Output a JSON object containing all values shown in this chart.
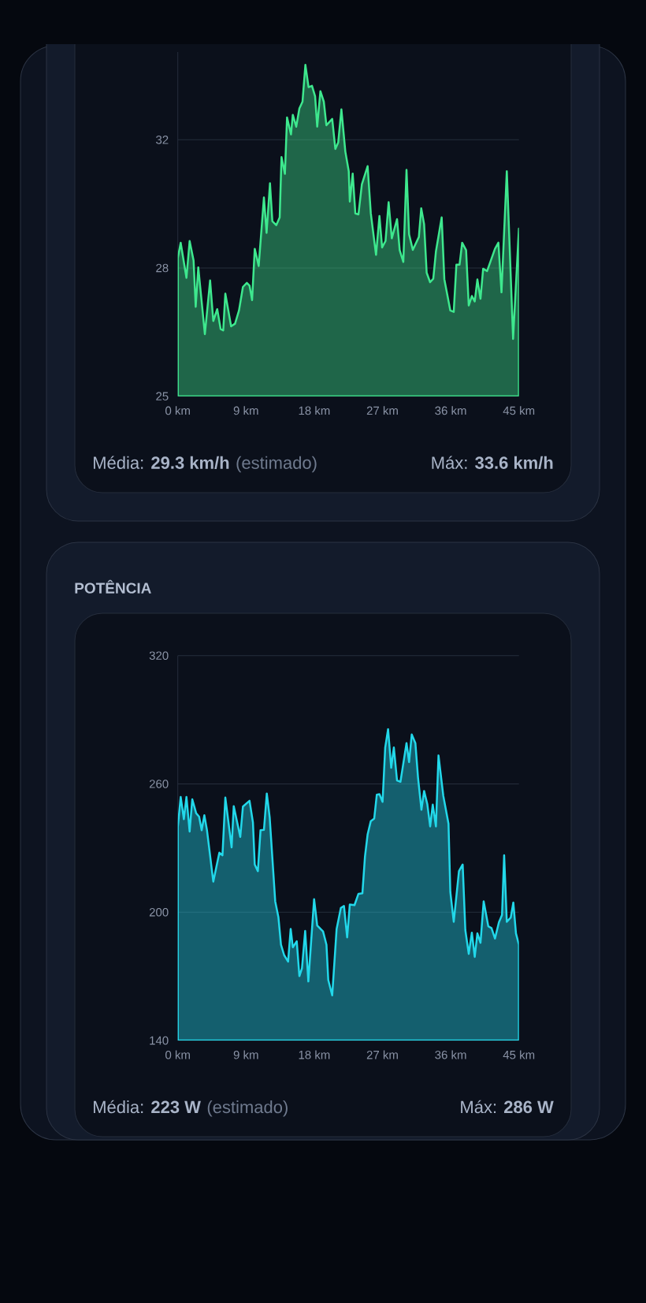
{
  "chart_data": [
    {
      "type": "area",
      "xlim": [
        0,
        45
      ],
      "xticks": [
        {
          "value": 0,
          "label": "0 km"
        },
        {
          "value": 9,
          "label": "9 km"
        },
        {
          "value": 18,
          "label": "18 km"
        },
        {
          "value": 27,
          "label": "27 km"
        },
        {
          "value": 36,
          "label": "36 km"
        },
        {
          "value": 45,
          "label": "45 km"
        }
      ],
      "ylim": [
        24.6,
        34.8
      ],
      "yticks": [
        {
          "value": 24.6,
          "label": "25"
        },
        {
          "value": 28.4,
          "label": "28"
        },
        {
          "value": 32.2,
          "label": "32"
        }
      ],
      "grid": "y",
      "series": [
        {
          "color": "#3ee88e",
          "x": [
            0,
            0.38,
            1.14,
            1.56,
            2.08,
            2.36,
            2.7,
            3.57,
            4.26,
            4.68,
            5.2,
            5.65,
            5.99,
            6.27,
            7.03,
            7.55,
            8.07,
            8.59,
            9.11,
            9.46,
            9.8,
            10.15,
            10.67,
            11.36,
            11.71,
            12.16,
            12.47,
            12.99,
            13.44,
            13.68,
            14.13,
            14.41,
            14.93,
            15.17,
            15.62,
            16.04,
            16.45,
            16.83,
            17.25,
            17.7,
            18.11,
            18.39,
            18.81,
            19.26,
            19.6,
            20.37,
            20.78,
            21.16,
            21.58,
            22.1,
            22.55,
            22.69,
            23.07,
            23.42,
            23.83,
            24.28,
            25.04,
            25.46,
            26.15,
            26.6,
            26.95,
            27.4,
            27.81,
            28.23,
            28.92,
            29.27,
            29.75,
            30.17,
            30.51,
            31.0,
            31.8,
            32.11,
            32.49,
            32.83,
            33.28,
            33.7,
            34.05,
            34.81,
            35.16,
            35.95,
            36.4,
            36.75,
            37.17,
            37.51,
            38.03,
            38.38,
            38.79,
            39.17,
            39.52,
            39.93,
            40.28,
            40.8,
            41.84,
            42.29,
            42.7,
            43.4,
            44.23,
            45
          ],
          "values": [
            28.7,
            29.15,
            28.11,
            29.2,
            28.62,
            27.25,
            28.42,
            26.44,
            28.03,
            26.83,
            27.18,
            26.59,
            26.55,
            27.64,
            26.67,
            26.75,
            27.14,
            27.84,
            27.96,
            27.88,
            27.45,
            28.97,
            28.46,
            30.49,
            29.44,
            30.91,
            29.79,
            29.67,
            29.9,
            31.69,
            31.19,
            32.86,
            32.36,
            32.94,
            32.59,
            33.13,
            33.33,
            34.42,
            33.76,
            33.8,
            33.49,
            32.59,
            33.64,
            33.33,
            32.63,
            32.82,
            31.93,
            32.12,
            33.1,
            31.85,
            31.27,
            30.37,
            31.2,
            30.02,
            29.99,
            30.88,
            31.42,
            30.02,
            28.79,
            29.94,
            29.01,
            29.2,
            30.35,
            29.28,
            29.85,
            28.93,
            28.58,
            31.31,
            29.4,
            28.94,
            29.32,
            30.17,
            29.7,
            28.26,
            27.98,
            28.08,
            28.89,
            29.9,
            28.07,
            27.14,
            27.1,
            28.5,
            28.5,
            29.15,
            28.93,
            27.29,
            27.57,
            27.41,
            28.06,
            27.49,
            28.38,
            28.31,
            28.97,
            29.15,
            27.68,
            31.27,
            26.3,
            29.57
          ]
        }
      ],
      "annotations": [
        "Média: **29.3 km/h**",
        "(estimado)",
        "Máx: **33.6 km/h**"
      ]
    },
    {
      "type": "area",
      "title": "POTÊNCIA",
      "xlim": [
        0,
        45
      ],
      "xticks": [
        {
          "value": 0,
          "label": "0 km"
        },
        {
          "value": 9,
          "label": "9 km"
        },
        {
          "value": 18,
          "label": "18 km"
        },
        {
          "value": 27,
          "label": "27 km"
        },
        {
          "value": 36,
          "label": "36 km"
        },
        {
          "value": 45,
          "label": "45 km"
        }
      ],
      "ylim": [
        140,
        320
      ],
      "yticks": [
        140,
        200,
        260,
        320
      ],
      "grid": "y",
      "series": [
        {
          "color": "#22d8ea",
          "x": [
            0,
            0.38,
            0.8,
            1.14,
            1.56,
            1.91,
            2.42,
            2.81,
            3.15,
            3.5,
            3.85,
            4.68,
            5.48,
            5.89,
            6.27,
            7.1,
            7.38,
            8.24,
            8.59,
            9.46,
            9.91,
            10.15,
            10.56,
            10.91,
            11.36,
            11.74,
            12.12,
            12.85,
            13.27,
            13.61,
            14.03,
            14.55,
            14.89,
            15.17,
            15.69,
            16.04,
            16.38,
            16.8,
            17.22,
            17.98,
            18.39,
            19.16,
            19.61,
            19.85,
            20.37,
            20.95,
            21.51,
            21.92,
            22.34,
            22.69,
            23.31,
            23.83,
            24.35,
            24.69,
            25.04,
            25.46,
            25.91,
            26.25,
            26.6,
            27.01,
            27.36,
            27.74,
            28.15,
            28.5,
            28.92,
            29.37,
            30.17,
            30.51,
            30.86,
            31.34,
            31.69,
            32.14,
            32.49,
            32.91,
            33.29,
            33.63,
            34.05,
            34.39,
            35.02,
            35.71,
            35.95,
            36.4,
            37.09,
            37.58,
            37.93,
            38.38,
            38.79,
            39.17,
            39.52,
            39.93,
            40.35,
            40.96,
            41.38,
            41.84,
            42.36,
            42.77,
            43.05,
            43.4,
            43.92,
            44.26,
            44.61,
            45
          ],
          "values": [
            239.8,
            253.9,
            243.5,
            253.9,
            237.7,
            252.8,
            246.3,
            244.7,
            238.3,
            245.3,
            238.3,
            214.3,
            227.8,
            226.6,
            253.6,
            230.3,
            249.6,
            235.2,
            249.4,
            252.1,
            242.0,
            222.3,
            219.2,
            238.3,
            238.5,
            255.5,
            244.4,
            205.1,
            197.7,
            184.8,
            179.9,
            176.9,
            192.2,
            183.6,
            186.4,
            170.1,
            173.8,
            191.2,
            167.6,
            206.1,
            193.8,
            191.0,
            184.8,
            168.3,
            161.1,
            192.2,
            202.0,
            202.9,
            188.2,
            203.6,
            203.3,
            208.6,
            208.8,
            226.0,
            236.4,
            242.6,
            243.8,
            254.9,
            255.2,
            251.6,
            277.0,
            285.6,
            267.5,
            277.0,
            261.6,
            261.0,
            279.1,
            270.2,
            283.1,
            279.1,
            262.9,
            247.9,
            256.7,
            250.6,
            240.1,
            250.3,
            240.1,
            273.3,
            254.5,
            241.4,
            209.4,
            195.5,
            219.2,
            222.3,
            191.6,
            180.5,
            190.4,
            179.1,
            190.1,
            185.7,
            205.1,
            193.4,
            192.6,
            187.7,
            195.3,
            198.7,
            226.6,
            195.5,
            197.5,
            204.5,
            190.1,
            184.8
          ]
        }
      ],
      "annotations": [
        "Média: **223 W**",
        "(estimado)",
        "Máx: **286 W**"
      ]
    }
  ]
}
